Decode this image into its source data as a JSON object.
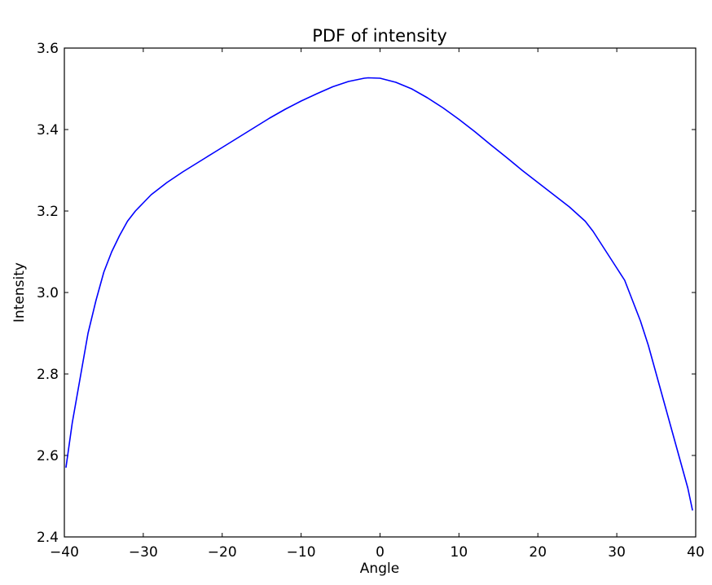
{
  "chart_data": {
    "type": "line",
    "title": "PDF of intensity",
    "xlabel": "Angle",
    "ylabel": "Intensity",
    "xlim": [
      -40,
      40
    ],
    "ylim": [
      2.4,
      3.6
    ],
    "grid": false,
    "xticks": [
      -40,
      -30,
      -20,
      -10,
      0,
      10,
      20,
      30,
      40
    ],
    "xtick_labels": [
      "−40",
      "−30",
      "−20",
      "−10",
      "0",
      "10",
      "20",
      "30",
      "40"
    ],
    "yticks": [
      2.4,
      2.6,
      2.8,
      3.0,
      3.2,
      3.4,
      3.6
    ],
    "ytick_labels": [
      "2.4",
      "2.6",
      "2.8",
      "3.0",
      "3.2",
      "3.4",
      "3.6"
    ],
    "series": [
      {
        "color": "#0000ff",
        "x": [
          -39.8,
          -39,
          -38,
          -37,
          -36,
          -35,
          -34,
          -33,
          -32,
          -31,
          -30,
          -29,
          -28,
          -27,
          -26,
          -25,
          -24,
          -23,
          -22,
          -21,
          -20,
          -18,
          -16,
          -14,
          -12,
          -10,
          -8,
          -6,
          -4,
          -2,
          -1.5,
          0,
          2,
          4,
          6,
          8,
          10,
          12,
          14,
          16,
          18,
          20,
          22,
          24,
          26,
          27,
          28,
          29,
          30,
          31,
          32,
          33,
          34,
          35,
          36,
          37,
          38,
          39,
          39.6
        ],
        "y": [
          2.57,
          2.68,
          2.79,
          2.9,
          2.98,
          3.05,
          3.1,
          3.14,
          3.175,
          3.2,
          3.22,
          3.24,
          3.255,
          3.27,
          3.283,
          3.296,
          3.308,
          3.32,
          3.332,
          3.344,
          3.356,
          3.38,
          3.404,
          3.428,
          3.45,
          3.47,
          3.488,
          3.505,
          3.518,
          3.526,
          3.527,
          3.526,
          3.516,
          3.5,
          3.478,
          3.453,
          3.425,
          3.395,
          3.363,
          3.332,
          3.3,
          3.27,
          3.24,
          3.21,
          3.175,
          3.15,
          3.12,
          3.09,
          3.06,
          3.03,
          2.98,
          2.93,
          2.87,
          2.8,
          2.73,
          2.66,
          2.59,
          2.52,
          2.465
        ]
      }
    ]
  }
}
